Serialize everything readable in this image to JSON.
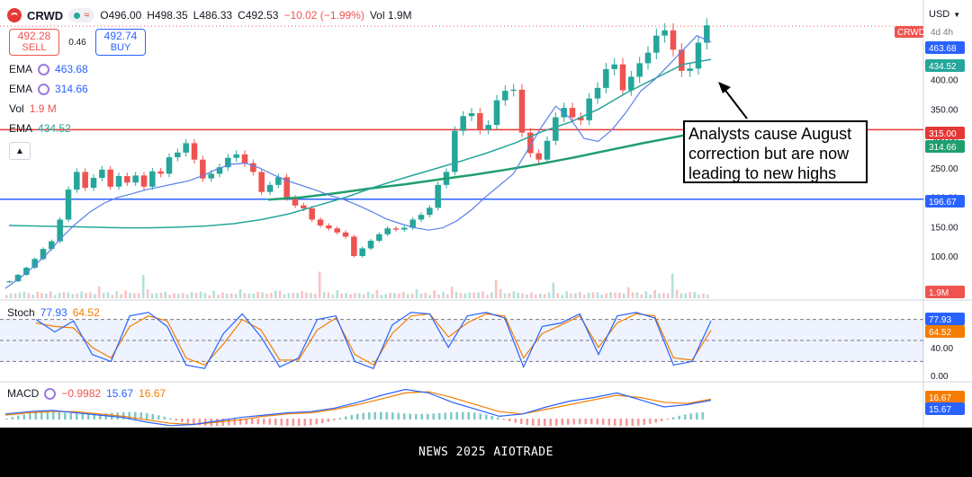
{
  "header": {
    "ticker": "CRWD",
    "timeframe": "4h",
    "open": "O496.00",
    "high": "H498.35",
    "low": "L486.33",
    "close": "C492.53",
    "change": "−10.02 (−1.99%)",
    "volume": "Vol 1.9M",
    "currency": "USD"
  },
  "trade": {
    "sell_price": "492.28",
    "sell_label": "SELL",
    "spread": "0.46",
    "buy_price": "492.74",
    "buy_label": "BUY"
  },
  "indicators": [
    {
      "name": "EMA",
      "value": "463.68",
      "color": "#2962ff"
    },
    {
      "name": "EMA",
      "value": "314.66",
      "color": "#2962ff"
    },
    {
      "name": "Vol",
      "value": "1.9 M",
      "color": "#ef5350"
    },
    {
      "name": "EMA",
      "value": "434.52",
      "color": "#26a69a"
    }
  ],
  "annotation": "Analysts cause August correction but are now leading to new highs",
  "price_tags": {
    "ticker_tag": "CRWD",
    "ticker_tag_suffix": "4d 4h",
    "ema_fast": "463.68",
    "ema_slow": "434.52",
    "support_red": "315.00",
    "ema_long": "314.66",
    "support_blue": "196.67",
    "volume": "1.9M"
  },
  "colors": {
    "up": "#26a69a",
    "down": "#ef5350",
    "ema_fast": "#5b7fe8",
    "ema_slow": "#26a69a",
    "ema_long": "#1f9e6e",
    "hline_red": "#e53935",
    "hline_blue": "#2962ff",
    "stoch_k": "#2962ff",
    "stoch_d": "#f57c00",
    "macd": "#2962ff",
    "signal": "#f57c00"
  },
  "stoch": {
    "label": "Stoch",
    "k": "77.93",
    "d": "64.52"
  },
  "macd": {
    "label": "MACD",
    "hist": "−0.9982",
    "macd": "15.67",
    "signal": "16.67"
  },
  "footer": "NEWS 2025 AIOTRADE",
  "chart_data": {
    "type": "candlestick",
    "price_axis_ticks": [
      100,
      150,
      200,
      250,
      300,
      350,
      400,
      450
    ],
    "stoch_axis_ticks": [
      0,
      40,
      80
    ],
    "stoch_band": [
      20,
      80
    ],
    "horizontal_lines": [
      {
        "value": 315,
        "color": "red"
      },
      {
        "value": 196.67,
        "color": "blue"
      }
    ],
    "close_path": [
      57,
      68,
      80,
      95,
      112,
      125,
      162,
      213,
      243,
      216,
      233,
      247,
      218,
      236,
      225,
      237,
      218,
      244,
      240,
      268,
      276,
      292,
      264,
      232,
      240,
      251,
      267,
      273,
      258,
      243,
      209,
      221,
      234,
      199,
      186,
      181,
      162,
      152,
      147,
      140,
      133,
      100,
      113,
      126,
      137,
      147,
      145,
      148,
      162,
      170,
      182,
      221,
      243,
      313,
      338,
      343,
      315,
      323,
      365,
      381,
      383,
      310,
      275,
      264,
      296,
      336,
      352,
      336,
      331,
      368,
      386,
      418,
      426,
      382,
      405,
      428,
      446,
      475,
      484,
      451,
      415,
      419,
      463,
      492.53
    ],
    "ema_fast_path": [
      45,
      62,
      82,
      105,
      132,
      155,
      175,
      190,
      200,
      206,
      213,
      218,
      223,
      228,
      237,
      248,
      256,
      258,
      250,
      238,
      228,
      220,
      212,
      203,
      196,
      186,
      175,
      163,
      155,
      148,
      144,
      148,
      160,
      178,
      200,
      220,
      240,
      280,
      320,
      355,
      335,
      300,
      295,
      315,
      345,
      380,
      400,
      425,
      450,
      475,
      463.68
    ],
    "ema_slow_path": [
      152,
      151,
      150,
      149,
      148,
      148,
      149,
      151,
      155,
      162,
      172,
      186,
      200,
      217,
      232,
      246,
      260,
      275,
      292,
      312,
      328,
      350,
      378,
      402,
      426,
      434.52
    ],
    "ema_long_path": [
      196,
      200,
      207,
      215,
      222,
      230,
      238,
      247,
      257,
      268,
      280,
      292,
      303,
      314.66
    ],
    "volume_path": [
      0.2,
      0.18,
      0.25,
      0.22,
      0.3,
      0.2,
      0.15,
      0.28,
      0.2,
      0.22,
      0.25,
      0.18,
      0.2,
      0.35,
      0.22,
      0.2,
      0.18,
      0.3,
      0.22,
      0.24,
      0.2,
      0.45,
      0.28,
      0.22,
      0.2,
      0.26,
      0.22,
      0.3,
      0.25,
      0.2,
      0.22,
      1.0,
      0.35,
      0.22,
      0.2,
      0.3,
      0.24,
      0.2,
      0.18,
      0.22
    ],
    "stoch_k_path": [
      80,
      62,
      78,
      30,
      20,
      85,
      90,
      70,
      15,
      10,
      60,
      88,
      55,
      12,
      25,
      80,
      85,
      20,
      10,
      72,
      90,
      88,
      40,
      85,
      90,
      82,
      12,
      70,
      75,
      88,
      30,
      85,
      90,
      82,
      15,
      20,
      77.93
    ],
    "stoch_d_path": [
      75,
      70,
      68,
      40,
      25,
      70,
      85,
      78,
      25,
      15,
      45,
      80,
      65,
      22,
      22,
      65,
      82,
      30,
      15,
      60,
      85,
      88,
      55,
      75,
      88,
      85,
      25,
      60,
      72,
      85,
      40,
      75,
      88,
      85,
      25,
      22,
      64.52
    ],
    "macd_path": [
      4,
      6,
      7,
      5,
      3,
      1,
      -3,
      -6,
      -5,
      -2,
      1,
      3,
      5,
      6,
      9,
      14,
      20,
      25,
      22,
      14,
      8,
      2,
      4,
      10,
      15,
      18,
      22,
      16,
      10,
      12,
      15.67
    ],
    "signal_path": [
      3,
      5,
      6,
      6,
      4,
      2,
      -1,
      -4,
      -5,
      -3,
      -1,
      2,
      4,
      5,
      8,
      12,
      17,
      22,
      23,
      18,
      12,
      6,
      4,
      8,
      12,
      16,
      20,
      18,
      14,
      13,
      16.67
    ]
  }
}
